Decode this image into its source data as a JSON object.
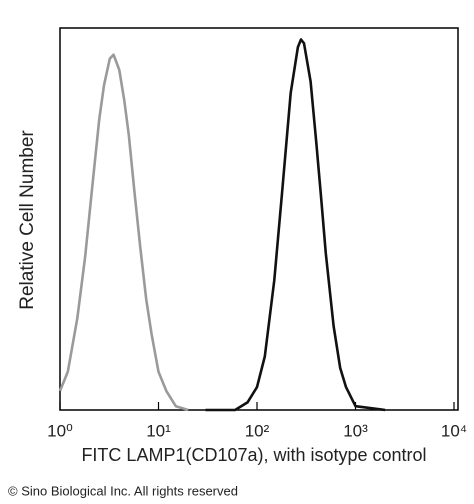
{
  "chart_data": {
    "type": "line",
    "xlabel": "FITC LAMP1(CD107a), with isotype control",
    "ylabel": "Relative Cell Number",
    "footer": "© Sino Biological Inc. All rights reserved",
    "xscale": "log",
    "xlim": [
      1,
      10000
    ],
    "xticks": [
      {
        "value": 1,
        "label": "10⁰"
      },
      {
        "value": 10,
        "label": "10¹"
      },
      {
        "value": 100,
        "label": "10²"
      },
      {
        "value": 1000,
        "label": "10³"
      },
      {
        "value": 10000,
        "label": "10⁴"
      }
    ],
    "ylim": [
      0,
      100
    ],
    "series": [
      {
        "color": "#9a9a9a",
        "x": [
          1,
          1.2,
          1.5,
          1.8,
          2.1,
          2.5,
          2.8,
          3.2,
          3.5,
          4,
          4.5,
          5,
          5.7,
          6.5,
          7.5,
          8.5,
          10,
          12,
          15,
          20
        ],
        "values": [
          5,
          10,
          24,
          40,
          57,
          76,
          85,
          92,
          93,
          89,
          81,
          72,
          57,
          43,
          29,
          20,
          10,
          5,
          1,
          0
        ]
      },
      {
        "color": "#111111",
        "x": [
          30,
          60,
          80,
          100,
          120,
          150,
          180,
          220,
          260,
          280,
          300,
          350,
          400,
          450,
          500,
          600,
          700,
          800,
          1000,
          2000
        ],
        "values": [
          0,
          0,
          2,
          6,
          14,
          34,
          57,
          83,
          95,
          97,
          96,
          86,
          70,
          55,
          41,
          22,
          11,
          6,
          1,
          0
        ]
      }
    ]
  }
}
